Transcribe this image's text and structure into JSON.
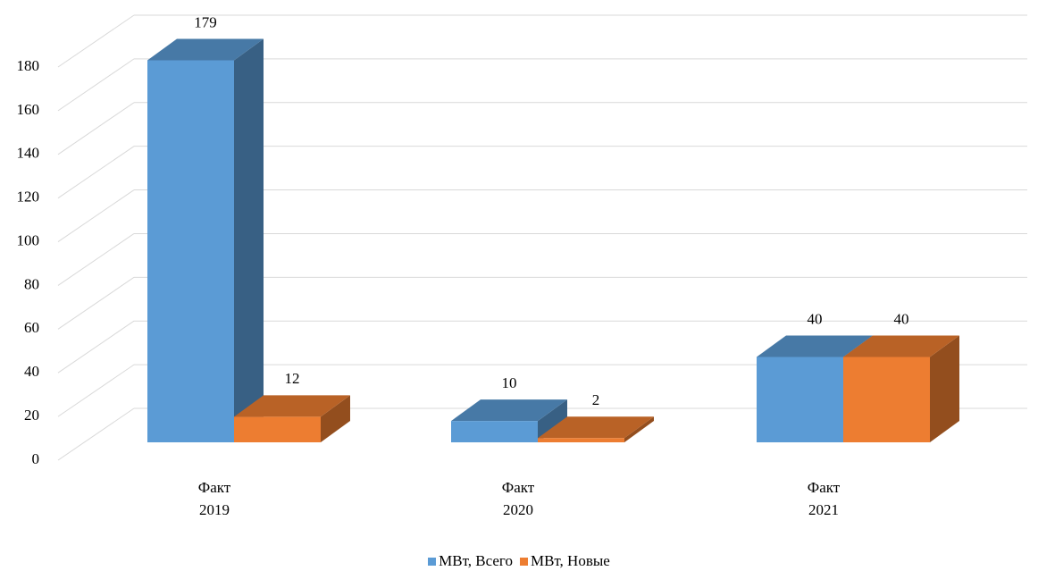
{
  "chart_data": {
    "type": "bar3d",
    "categories": [
      "Факт 2019",
      "Факт 2020",
      "Факт 2021"
    ],
    "series": [
      {
        "name": "МВт, Всего",
        "color": "#5b9bd5",
        "values": [
          179,
          10,
          40
        ]
      },
      {
        "name": "МВт, Новые",
        "color": "#ed7d31",
        "values": [
          12,
          2,
          40
        ]
      }
    ],
    "ylim": [
      0,
      180
    ],
    "yticks": [
      0,
      20,
      40,
      60,
      80,
      100,
      120,
      140,
      160,
      180
    ],
    "grid": true,
    "legend": "bottom"
  }
}
